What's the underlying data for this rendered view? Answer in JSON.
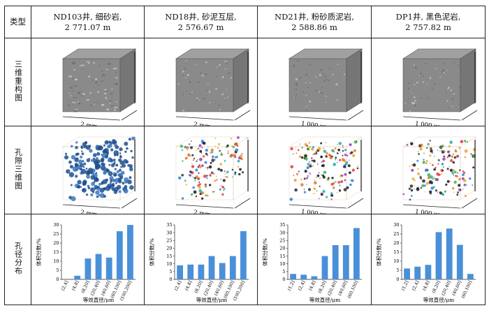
{
  "table": {
    "type_header": "类型",
    "row_labels": [
      "三维重构图",
      "孔隙三维图",
      "孔径分布"
    ],
    "samples": [
      {
        "title": "ND103井, 细砂岩,",
        "depth": "2 771.07 m",
        "scale_recon": "2 mm",
        "scale_pore": "2 mm"
      },
      {
        "title": "ND18井, 砂泥互层,",
        "depth": "2 576.67 m",
        "scale_recon": "2 mm",
        "scale_pore": "2 mm"
      },
      {
        "title": "ND21井, 粉砂质泥岩,",
        "depth": "2 588.86 m",
        "scale_recon": "1 000 μm",
        "scale_pore": "1 000 μm"
      },
      {
        "title": "DP1井, 黑色泥岩,",
        "depth": "2 757.82 m",
        "scale_recon": "1 000 μm",
        "scale_pore": "1 000 μm"
      }
    ]
  },
  "colors": {
    "bar": "#4a90d9",
    "cube_face_front": "#8a8a8a",
    "cube_face_top": "#a0a0a0",
    "cube_face_side": "#767676",
    "pore_blue": "#1f4f8f"
  },
  "chart_data": [
    {
      "type": "bar",
      "categories": [
        "(2,4]",
        "(4,8]",
        "(8,20]",
        "(20,40]",
        "(40,60]",
        "(60,100]",
        "(100,200]"
      ],
      "values": [
        0,
        2,
        11.5,
        14,
        12,
        26.5,
        30
      ],
      "ylabel": "体积分数/%",
      "xlabel": "等效直径/μm",
      "ylim": [
        0,
        30
      ],
      "yticks": [
        0,
        5,
        10,
        15,
        20,
        25,
        30
      ]
    },
    {
      "type": "bar",
      "categories": [
        "(2,4]",
        "(4,8]",
        "(8,20]",
        "(20,40]",
        "(40,60]",
        "(60,100]",
        "(100,200]"
      ],
      "values": [
        9,
        9.5,
        9.5,
        15,
        10.5,
        15,
        31
      ],
      "ylabel": "体积分数/%",
      "xlabel": "等效直径/μm",
      "ylim": [
        0,
        35
      ],
      "yticks": [
        0,
        5,
        10,
        15,
        20,
        25,
        30,
        35
      ]
    },
    {
      "type": "bar",
      "categories": [
        "(1,2]",
        "(2,4]",
        "(4,8]",
        "(8,20]",
        "(20,40]",
        "(40,60]",
        "(60,100]"
      ],
      "values": [
        3.5,
        3,
        2,
        15,
        22,
        22,
        33
      ],
      "ylabel": "体积分数/%",
      "xlabel": "等效直径/μm",
      "ylim": [
        0,
        35
      ],
      "yticks": [
        0,
        5,
        10,
        15,
        20,
        25,
        30,
        35
      ]
    },
    {
      "type": "bar",
      "categories": [
        "(1,2]",
        "(2,4]",
        "(4,8]",
        "(8,20]",
        "(20,40]",
        "(40,60]",
        "(60,100]"
      ],
      "values": [
        6,
        7,
        8,
        26,
        28,
        19,
        3
      ],
      "ylabel": "体积分数/%",
      "xlabel": "等效直径/μm",
      "ylim": [
        0,
        30
      ],
      "yticks": [
        0,
        5,
        10,
        15,
        20,
        25,
        30
      ]
    }
  ]
}
